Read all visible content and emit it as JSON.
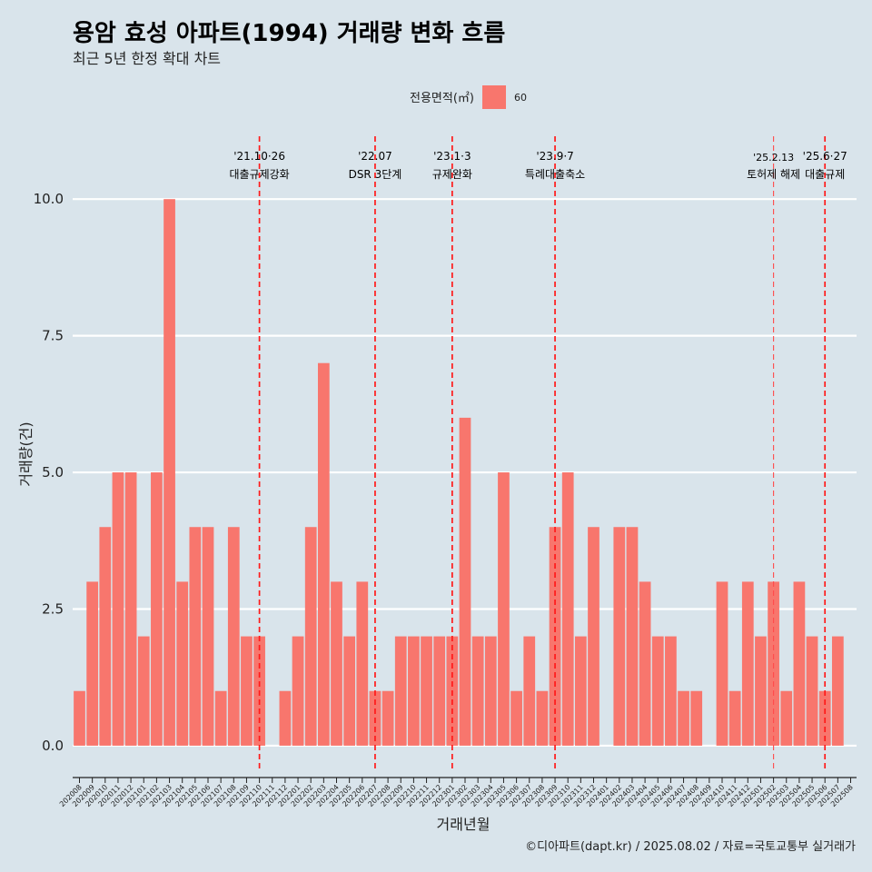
{
  "chart_data": {
    "type": "bar",
    "title": "용암 효성 아파트(1994) 거래량 변화 흐름",
    "subtitle": "최근 5년 한정 확대 차트",
    "xlabel": "거래년월",
    "ylabel": "거래량(건)",
    "legend": {
      "title": "전용면적(㎡)",
      "position": "top",
      "entries": [
        {
          "name": "60",
          "color": "#f8766d"
        }
      ]
    },
    "caption": "©디아파트(dapt.kr) / 2025.08.02 / 자료=국토교통부 실거래가",
    "ylim": [
      -0.45,
      11.15
    ],
    "yticks": [
      0,
      2.5,
      5,
      7.5,
      10
    ],
    "ytick_labels": [
      "0.0",
      "2.5",
      "5.0",
      "7.5",
      "10.0"
    ],
    "grid": true,
    "bar_color": "#f8766d",
    "categories": [
      "202008",
      "202009",
      "202010",
      "202011",
      "202012",
      "202101",
      "202102",
      "202103",
      "202104",
      "202105",
      "202106",
      "202107",
      "202108",
      "202109",
      "202110",
      "202111",
      "202112",
      "202201",
      "202202",
      "202203",
      "202204",
      "202205",
      "202206",
      "202207",
      "202208",
      "202209",
      "202210",
      "202211",
      "202212",
      "202301",
      "202302",
      "202303",
      "202304",
      "202305",
      "202306",
      "202307",
      "202308",
      "202309",
      "202310",
      "202311",
      "202312",
      "202401",
      "202402",
      "202403",
      "202404",
      "202405",
      "202406",
      "202407",
      "202408",
      "202409",
      "202410",
      "202411",
      "202412",
      "202501",
      "202502",
      "202503",
      "202504",
      "202505",
      "202506",
      "202507",
      "202508"
    ],
    "values": [
      1,
      3,
      4,
      5,
      5,
      2,
      5,
      10,
      3,
      4,
      4,
      1,
      4,
      2,
      2,
      0,
      1,
      2,
      4,
      7,
      3,
      2,
      3,
      1,
      1,
      2,
      2,
      2,
      2,
      2,
      6,
      2,
      2,
      5,
      1,
      2,
      1,
      4,
      5,
      2,
      4,
      0,
      4,
      4,
      3,
      2,
      2,
      1,
      1,
      0,
      3,
      1,
      3,
      2,
      3,
      1,
      3,
      2,
      1,
      2,
      0
    ],
    "annotations": [
      {
        "x": "202110",
        "date": "'21.10·26",
        "label": "대출규제강화",
        "style": "dashed"
      },
      {
        "x": "202207",
        "date": "'22.07",
        "label": "DSR 3단계",
        "style": "dashed"
      },
      {
        "x": "202301",
        "date": "'23.1·3",
        "label": "규제완화",
        "style": "dashed"
      },
      {
        "x": "202309",
        "date": "'23.9·7",
        "label": "특례대출축소",
        "style": "dashed"
      },
      {
        "x": "202502",
        "date": "'25.2.13",
        "label": "토허제 해제",
        "style": "dashed-thin"
      },
      {
        "x": "202506",
        "date": "'25.6·27",
        "label": "대출규제",
        "style": "dashed"
      }
    ]
  }
}
